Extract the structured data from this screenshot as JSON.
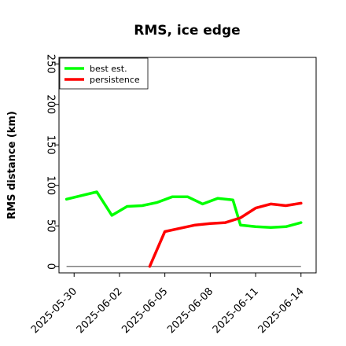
{
  "chart_data": {
    "type": "line",
    "title": "RMS, ice edge",
    "xlabel": "",
    "ylabel": "RMS distance (km)",
    "ylim": [
      -8,
      258
    ],
    "yticks": [
      0,
      50,
      100,
      150,
      200,
      250
    ],
    "xlim": [
      "2025-05-29T00:00",
      "2025-06-15T00:00"
    ],
    "xticks": [
      "2025-05-30",
      "2025-06-02",
      "2025-06-05",
      "2025-06-08",
      "2025-06-11",
      "2025-06-14"
    ],
    "grid": false,
    "legend": "top-left",
    "baseline": {
      "y": 0,
      "color": "#808080"
    },
    "series": [
      {
        "name": "best est.",
        "color": "#00ff00",
        "x": [
          "2025-05-29T12:00",
          "2025-05-31T12:00",
          "2025-06-01T12:00",
          "2025-06-02T12:00",
          "2025-06-03T12:00",
          "2025-06-04T12:00",
          "2025-06-05T12:00",
          "2025-06-06T12:00",
          "2025-06-07T12:00",
          "2025-06-08T12:00",
          "2025-06-09T12:00",
          "2025-06-10T00:00",
          "2025-06-11T00:00",
          "2025-06-12T00:00",
          "2025-06-13T00:00",
          "2025-06-14T00:00"
        ],
        "y": [
          83,
          92,
          63,
          74,
          75,
          79,
          86,
          86,
          77,
          84,
          82,
          51,
          49,
          48,
          49,
          54
        ]
      },
      {
        "name": "persistence",
        "color": "#ff0000",
        "x": [
          "2025-06-04T00:00",
          "2025-06-05T00:00",
          "2025-06-06T00:00",
          "2025-06-07T00:00",
          "2025-06-08T00:00",
          "2025-06-09T00:00",
          "2025-06-10T00:00",
          "2025-06-11T00:00",
          "2025-06-12T00:00",
          "2025-06-13T00:00",
          "2025-06-14T00:00"
        ],
        "y": [
          0,
          43,
          47,
          51,
          53,
          54,
          60,
          72,
          77,
          75,
          78
        ]
      }
    ]
  }
}
